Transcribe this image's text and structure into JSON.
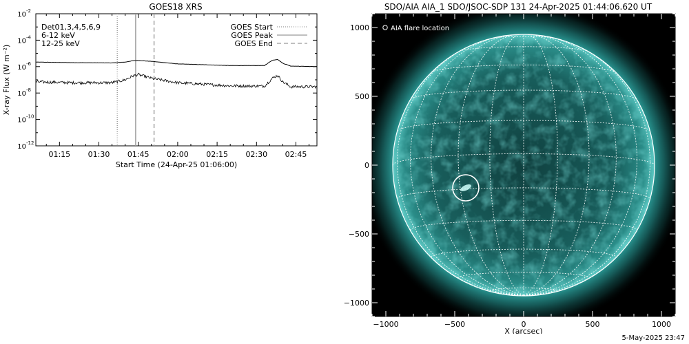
{
  "chart_data": [
    {
      "type": "line",
      "title": "GOES18 XRS",
      "xlabel": "Start Time (24-Apr-25 01:06:00)",
      "ylabel": "X-ray Flux (W m⁻²)",
      "y_scale": "log",
      "ylim": [
        1e-12,
        0.01
      ],
      "xlim": [
        "01:06",
        "02:53"
      ],
      "x_ticks": [
        "01:15",
        "01:30",
        "01:45",
        "02:00",
        "02:15",
        "02:30",
        "02:45"
      ],
      "y_ticks": [
        {
          "value": 0.01,
          "label": "10",
          "exp": "-2"
        },
        {
          "value": 0.0001,
          "label": "10",
          "exp": "-4"
        },
        {
          "value": 1e-06,
          "label": "10",
          "exp": "-6"
        },
        {
          "value": 1e-08,
          "label": "10",
          "exp": "-8"
        },
        {
          "value": 1e-10,
          "label": "10",
          "exp": "-10"
        },
        {
          "value": 1e-12,
          "label": "10",
          "exp": "-12"
        }
      ],
      "detectors_label": "Det01,3,4,5,6,9",
      "series": [
        {
          "name": "6-12 keV",
          "color": "#ff00ff",
          "x": [
            "01:06",
            "01:20",
            "01:35",
            "01:40",
            "01:43",
            "01:45",
            "01:50",
            "02:00",
            "02:20",
            "02:33",
            "02:36",
            "02:38",
            "02:40",
            "02:43",
            "02:53"
          ],
          "values": [
            2.2e-06,
            2e-06,
            1.9e-06,
            2.2e-06,
            2.8e-06,
            2.9e-06,
            2.5e-06,
            1.6e-06,
            1.2e-06,
            1.2e-06,
            3e-06,
            3.5e-06,
            1.8e-06,
            1.1e-06,
            1e-06
          ]
        },
        {
          "name": "12-25 keV",
          "color": "#00ff00",
          "x": [
            "01:06",
            "01:20",
            "01:35",
            "01:40",
            "01:43",
            "01:45",
            "01:50",
            "02:00",
            "02:20",
            "02:33",
            "02:36",
            "02:38",
            "02:40",
            "02:43",
            "02:53"
          ],
          "values": [
            7e-08,
            6e-08,
            6e-08,
            1e-07,
            2e-07,
            2.5e-07,
            1.3e-07,
            6e-08,
            3.5e-08,
            3.3e-08,
            1.3e-07,
            2.2e-07,
            7e-08,
            3e-08,
            3e-08
          ]
        }
      ],
      "events": [
        {
          "name": "GOES Start",
          "time": "01:37",
          "style": "dotted"
        },
        {
          "name": "GOES Peak",
          "time": "01:44",
          "style": "solid"
        },
        {
          "name": "GOES End",
          "time": "01:51",
          "style": "dashed"
        }
      ],
      "legend_position": "top-right"
    },
    {
      "type": "image",
      "title": "SDO/AIA AIA_1 SDO/JSOC-SDP 131 24-Apr-2025 01:44:06.620 UT",
      "xlabel": "X (arcsec)",
      "ylabel": "",
      "xlim": [
        -1100,
        1100
      ],
      "ylim": [
        -1100,
        1100
      ],
      "x_ticks": [
        "−1000",
        "−500",
        "0",
        "500",
        "1000"
      ],
      "y_ticks": [
        "1000",
        "500",
        "0",
        "−500",
        "−1000"
      ],
      "legend_label": "AIA flare location",
      "solar_radius_arcsec": 950,
      "flare_location": {
        "x": -420,
        "y": -165,
        "radius": 95
      },
      "disk_color": "#1a6e6c",
      "limb_color": "#7fe0dc",
      "grid_color": "#ffffff"
    }
  ],
  "footer": {
    "date": "5-May-2025 23:47"
  }
}
